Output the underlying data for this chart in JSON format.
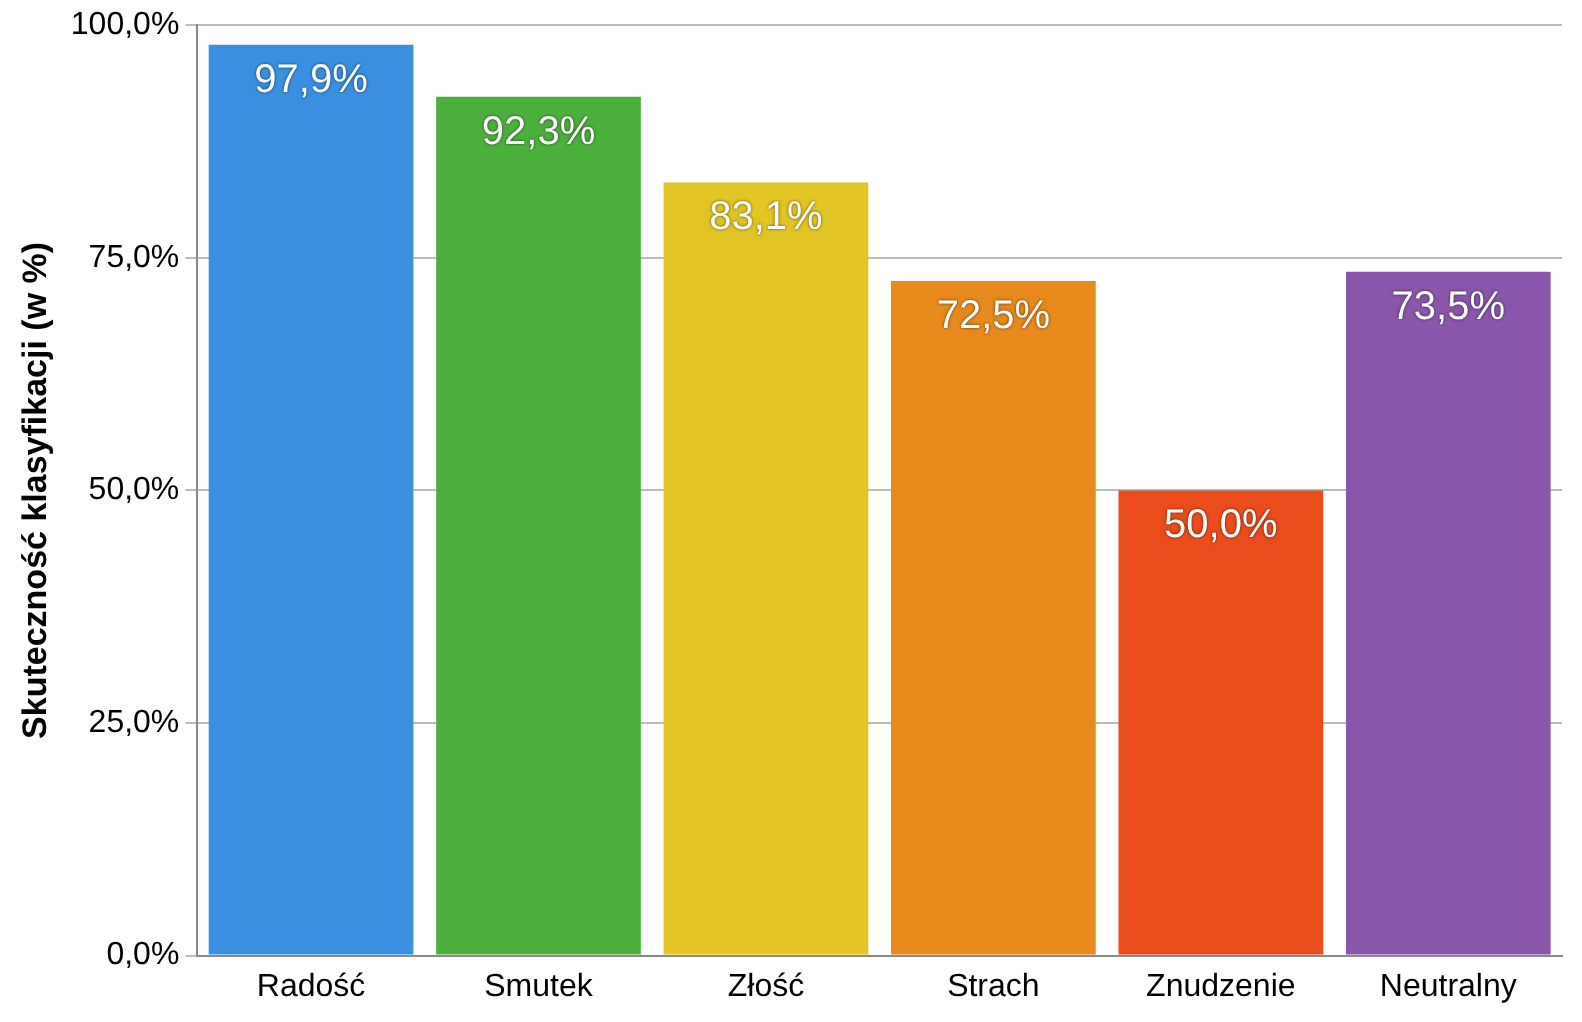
{
  "chart_data": {
    "type": "bar",
    "ylabel": "Skuteczność klasyfikacji (w %)",
    "categories": [
      "Radość",
      "Smutek",
      "Złość",
      "Strach",
      "Znudzenie",
      "Neutralny"
    ],
    "values": [
      97.9,
      92.3,
      83.1,
      72.5,
      50.0,
      73.5
    ],
    "value_labels": [
      "97,9%",
      "92,3%",
      "83,1%",
      "72,5%",
      "50,0%",
      "73,5%"
    ],
    "colors": [
      "#3b8fe0",
      "#4cb03c",
      "#e2c425",
      "#e8891c",
      "#ea4c1c",
      "#8a55aa"
    ],
    "ylim": [
      0,
      100
    ],
    "yticks": [
      {
        "value": 0,
        "label": "0,0%"
      },
      {
        "value": 25,
        "label": "25,0%"
      },
      {
        "value": 50,
        "label": "50,0%"
      },
      {
        "value": 75,
        "label": "75,0%"
      },
      {
        "value": 100,
        "label": "100,0%"
      }
    ],
    "grid": "y",
    "legend": false
  }
}
